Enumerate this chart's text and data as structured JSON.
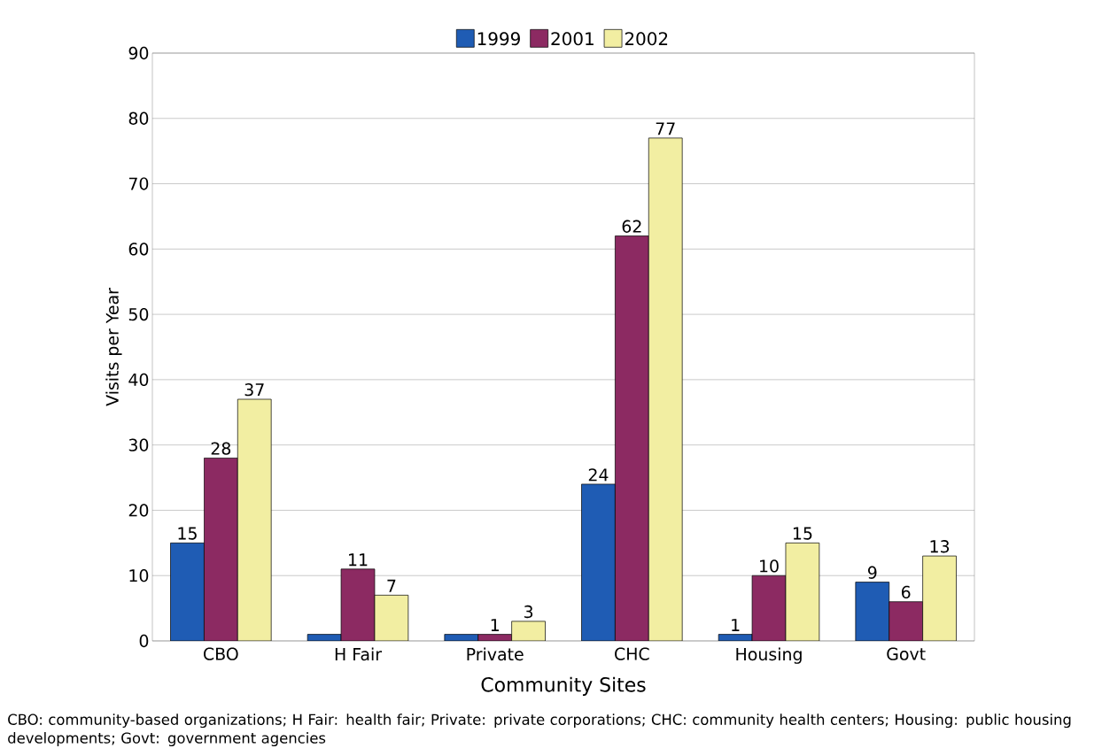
{
  "chart_data": {
    "type": "bar",
    "categories": [
      "CBO",
      "H Fair",
      "Private",
      "CHC",
      "Housing",
      "Govt"
    ],
    "series": [
      {
        "name": "1999",
        "color": "#1f5cb4",
        "values": [
          15,
          1,
          1,
          24,
          1,
          9
        ],
        "value_labels": [
          "15",
          null,
          null,
          "24",
          "1",
          "9"
        ]
      },
      {
        "name": "2001",
        "color": "#8c2a62",
        "values": [
          28,
          11,
          1,
          62,
          10,
          6
        ],
        "value_labels": [
          "28",
          "11",
          "1",
          "62",
          "10",
          "6"
        ]
      },
      {
        "name": "2002",
        "color": "#f2eea2",
        "values": [
          37,
          7,
          3,
          77,
          15,
          13
        ],
        "value_labels": [
          "37",
          "7",
          "3",
          "77",
          "15",
          "13"
        ]
      }
    ],
    "xlabel": "Community Sites",
    "ylabel": "Visits per Year",
    "ylim": [
      0,
      90
    ],
    "yticks": [
      0,
      10,
      20,
      30,
      40,
      50,
      60,
      70,
      80,
      90
    ],
    "grid": "y",
    "legend": "top",
    "annotations": [
      "CBO: community-based organizations; H Fair: health fair; Private: private corporations; CHC: community health centers; Housing: public housing developments; Govt: government agencies"
    ]
  }
}
